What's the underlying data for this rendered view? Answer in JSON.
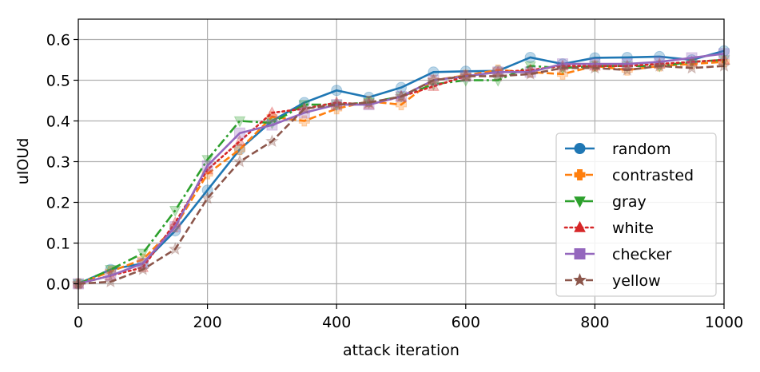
{
  "chart_data": {
    "type": "line",
    "xlabel": "attack iteration",
    "ylabel": "uIOUd",
    "xlim": [
      0,
      1000
    ],
    "ylim": [
      -0.05,
      0.65
    ],
    "xticks": [
      0,
      200,
      400,
      600,
      800,
      1000
    ],
    "yticks": [
      0.0,
      0.1,
      0.2,
      0.3,
      0.4,
      0.5,
      0.6
    ],
    "xtick_labels": [
      "0",
      "200",
      "400",
      "600",
      "800",
      "1000"
    ],
    "ytick_labels": [
      "0.0",
      "0.1",
      "0.2",
      "0.3",
      "0.4",
      "0.5",
      "0.6"
    ],
    "grid": true,
    "legend_position": "center-right",
    "x": [
      0,
      50,
      100,
      150,
      200,
      250,
      300,
      350,
      400,
      450,
      500,
      550,
      600,
      650,
      700,
      750,
      800,
      850,
      900,
      950,
      1000
    ],
    "series": [
      {
        "name": "random",
        "color": "#1f77b4",
        "dash": "solid",
        "marker": "circle",
        "values": [
          0.0,
          0.035,
          0.05,
          0.13,
          0.23,
          0.33,
          0.4,
          0.445,
          0.475,
          0.458,
          0.482,
          0.52,
          0.522,
          0.523,
          0.556,
          0.54,
          0.555,
          0.556,
          0.558,
          0.55,
          0.572
        ]
      },
      {
        "name": "contrasted",
        "color": "#ff7f0e",
        "dash": "dashed",
        "marker": "plus",
        "values": [
          0.0,
          0.03,
          0.06,
          0.14,
          0.27,
          0.33,
          0.41,
          0.4,
          0.43,
          0.448,
          0.44,
          0.5,
          0.512,
          0.525,
          0.52,
          0.515,
          0.535,
          0.525,
          0.535,
          0.54,
          0.545
        ]
      },
      {
        "name": "gray",
        "color": "#2ca02c",
        "dash": "dashdot",
        "marker": "triangle-down",
        "values": [
          0.0,
          0.035,
          0.075,
          0.18,
          0.305,
          0.4,
          0.395,
          0.44,
          0.44,
          0.445,
          0.46,
          0.49,
          0.5,
          0.5,
          0.535,
          0.53,
          0.535,
          0.535,
          0.535,
          0.545,
          0.55
        ]
      },
      {
        "name": "white",
        "color": "#d62728",
        "dash": "dotted",
        "marker": "triangle-up",
        "values": [
          0.0,
          0.02,
          0.04,
          0.15,
          0.28,
          0.35,
          0.42,
          0.43,
          0.445,
          0.44,
          0.46,
          0.485,
          0.51,
          0.52,
          0.525,
          0.535,
          0.535,
          0.535,
          0.54,
          0.545,
          0.55
        ]
      },
      {
        "name": "checker",
        "color": "#9467bd",
        "dash": "solid",
        "marker": "square",
        "values": [
          0.0,
          0.02,
          0.05,
          0.14,
          0.29,
          0.37,
          0.39,
          0.42,
          0.44,
          0.44,
          0.46,
          0.5,
          0.51,
          0.52,
          0.52,
          0.54,
          0.54,
          0.54,
          0.545,
          0.555,
          0.565
        ]
      },
      {
        "name": "yellow",
        "color": "#8c564b",
        "dash": "dashed",
        "marker": "star",
        "values": [
          0.0,
          0.005,
          0.035,
          0.085,
          0.21,
          0.3,
          0.35,
          0.43,
          0.44,
          0.445,
          0.46,
          0.5,
          0.51,
          0.51,
          0.515,
          0.53,
          0.53,
          0.525,
          0.535,
          0.53,
          0.535
        ]
      }
    ]
  }
}
